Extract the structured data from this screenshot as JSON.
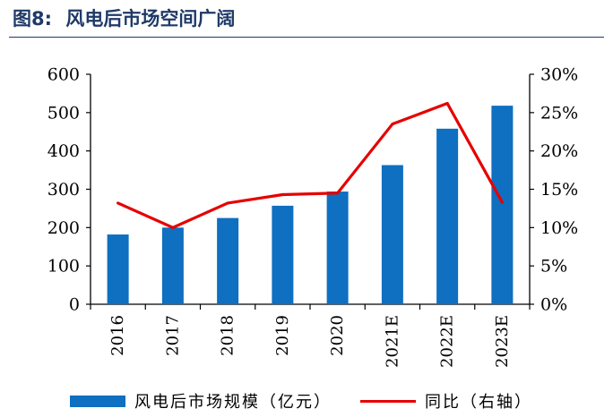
{
  "figure": {
    "number": "图8:",
    "title": "风电后市场空间广阔"
  },
  "colors": {
    "title": "#1f3a68",
    "bar": "#0f6fc0",
    "line": "#e60000",
    "axis": "#000000"
  },
  "legend": {
    "bar_label": "风电后市场规模（亿元）",
    "line_label": "同比（右轴）"
  },
  "chart_data": {
    "type": "bar",
    "categories": [
      "2016",
      "2017",
      "2018",
      "2019",
      "2020",
      "2021E",
      "2022E",
      "2023E"
    ],
    "series": [
      {
        "name": "风电后市场规模（亿元）",
        "type": "bar",
        "axis": "left",
        "values": [
          182,
          200,
          225,
          257,
          294,
          363,
          458,
          518
        ]
      },
      {
        "name": "同比（右轴）",
        "type": "line",
        "axis": "right",
        "values": [
          13.2,
          10.0,
          13.2,
          14.3,
          14.5,
          23.5,
          26.2,
          13.3
        ]
      }
    ],
    "y_left": {
      "min": 0,
      "max": 600,
      "ticks": [
        "0",
        "100",
        "200",
        "300",
        "400",
        "500",
        "600"
      ]
    },
    "y_right": {
      "min": 0,
      "max": 30,
      "ticks": [
        "0%",
        "5%",
        "10%",
        "15%",
        "20%",
        "25%",
        "30%"
      ]
    },
    "xlabel": "",
    "ylabel": "",
    "grid": false,
    "legend_position": "bottom"
  }
}
